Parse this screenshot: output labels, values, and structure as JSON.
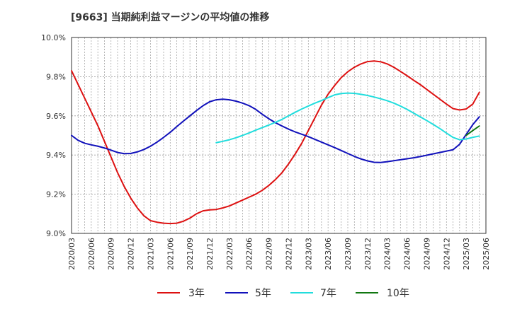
{
  "chart_data": {
    "type": "line",
    "title": "[9663]  当期純利益マージンの平均値の推移",
    "xlabel": "",
    "ylabel": "",
    "ylim": [
      9.0,
      10.0
    ],
    "yticks": [
      9.0,
      9.2,
      9.4,
      9.6,
      9.8,
      10.0
    ],
    "ytick_labels": [
      "9.0%",
      "9.2%",
      "9.4%",
      "9.6%",
      "9.8%",
      "10.0%"
    ],
    "xlim": [
      "2020-03",
      "2025-06"
    ],
    "xtick_labels": [
      "2020/03",
      "2020/06",
      "2020/09",
      "2020/12",
      "2021/03",
      "2021/06",
      "2021/09",
      "2021/12",
      "2022/03",
      "2022/06",
      "2022/09",
      "2022/12",
      "2023/03",
      "2023/06",
      "2023/09",
      "2023/12",
      "2024/03",
      "2024/06",
      "2024/09",
      "2024/12",
      "2025/03",
      "2025/06"
    ],
    "grid": true,
    "legend_position": "bottom",
    "series": [
      {
        "name": "3年",
        "color": "#dd1111",
        "points": [
          [
            "2020-03",
            9.83
          ],
          [
            "2020-04",
            9.76
          ],
          [
            "2020-05",
            9.69
          ],
          [
            "2020-06",
            9.62
          ],
          [
            "2020-07",
            9.55
          ],
          [
            "2020-08",
            9.47
          ],
          [
            "2020-09",
            9.39
          ],
          [
            "2020-10",
            9.31
          ],
          [
            "2020-11",
            9.24
          ],
          [
            "2020-12",
            9.18
          ],
          [
            "2021-01",
            9.13
          ],
          [
            "2021-02",
            9.09
          ],
          [
            "2021-03",
            9.065
          ],
          [
            "2021-04",
            9.057
          ],
          [
            "2021-05",
            9.052
          ],
          [
            "2021-06",
            9.05
          ],
          [
            "2021-07",
            9.052
          ],
          [
            "2021-08",
            9.062
          ],
          [
            "2021-09",
            9.078
          ],
          [
            "2021-10",
            9.1
          ],
          [
            "2021-11",
            9.115
          ],
          [
            "2021-12",
            9.12
          ],
          [
            "2022-01",
            9.122
          ],
          [
            "2022-02",
            9.13
          ],
          [
            "2022-03",
            9.14
          ],
          [
            "2022-04",
            9.155
          ],
          [
            "2022-05",
            9.17
          ],
          [
            "2022-06",
            9.185
          ],
          [
            "2022-07",
            9.2
          ],
          [
            "2022-08",
            9.22
          ],
          [
            "2022-09",
            9.245
          ],
          [
            "2022-10",
            9.275
          ],
          [
            "2022-11",
            9.31
          ],
          [
            "2022-12",
            9.355
          ],
          [
            "2023-01",
            9.405
          ],
          [
            "2023-02",
            9.46
          ],
          [
            "2023-03",
            9.525
          ],
          [
            "2023-04",
            9.59
          ],
          [
            "2023-05",
            9.655
          ],
          [
            "2023-06",
            9.71
          ],
          [
            "2023-07",
            9.755
          ],
          [
            "2023-08",
            9.795
          ],
          [
            "2023-09",
            9.825
          ],
          [
            "2023-10",
            9.848
          ],
          [
            "2023-11",
            9.865
          ],
          [
            "2023-12",
            9.877
          ],
          [
            "2024-01",
            9.88
          ],
          [
            "2024-02",
            9.876
          ],
          [
            "2024-03",
            9.865
          ],
          [
            "2024-04",
            9.848
          ],
          [
            "2024-05",
            9.827
          ],
          [
            "2024-06",
            9.805
          ],
          [
            "2024-07",
            9.782
          ],
          [
            "2024-08",
            9.76
          ],
          [
            "2024-09",
            9.735
          ],
          [
            "2024-10",
            9.71
          ],
          [
            "2024-11",
            9.685
          ],
          [
            "2024-12",
            9.66
          ],
          [
            "2025-01",
            9.637
          ],
          [
            "2025-02",
            9.63
          ],
          [
            "2025-03",
            9.635
          ],
          [
            "2025-04",
            9.66
          ],
          [
            "2025-05",
            9.72
          ]
        ]
      },
      {
        "name": "5年",
        "color": "#1111bb",
        "points": [
          [
            "2020-03",
            9.5
          ],
          [
            "2020-04",
            9.475
          ],
          [
            "2020-05",
            9.46
          ],
          [
            "2020-06",
            9.452
          ],
          [
            "2020-07",
            9.445
          ],
          [
            "2020-08",
            9.436
          ],
          [
            "2020-09",
            9.425
          ],
          [
            "2020-10",
            9.413
          ],
          [
            "2020-11",
            9.407
          ],
          [
            "2020-12",
            9.408
          ],
          [
            "2021-01",
            9.416
          ],
          [
            "2021-02",
            9.428
          ],
          [
            "2021-03",
            9.445
          ],
          [
            "2021-04",
            9.466
          ],
          [
            "2021-05",
            9.49
          ],
          [
            "2021-06",
            9.516
          ],
          [
            "2021-07",
            9.545
          ],
          [
            "2021-08",
            9.573
          ],
          [
            "2021-09",
            9.6
          ],
          [
            "2021-10",
            9.627
          ],
          [
            "2021-11",
            9.652
          ],
          [
            "2021-12",
            9.672
          ],
          [
            "2022-01",
            9.682
          ],
          [
            "2022-02",
            9.685
          ],
          [
            "2022-03",
            9.682
          ],
          [
            "2022-04",
            9.675
          ],
          [
            "2022-05",
            9.665
          ],
          [
            "2022-06",
            9.652
          ],
          [
            "2022-07",
            9.633
          ],
          [
            "2022-08",
            9.608
          ],
          [
            "2022-09",
            9.585
          ],
          [
            "2022-10",
            9.565
          ],
          [
            "2022-11",
            9.548
          ],
          [
            "2022-12",
            9.532
          ],
          [
            "2023-01",
            9.518
          ],
          [
            "2023-02",
            9.506
          ],
          [
            "2023-03",
            9.494
          ],
          [
            "2023-04",
            9.48
          ],
          [
            "2023-05",
            9.466
          ],
          [
            "2023-06",
            9.452
          ],
          [
            "2023-07",
            9.438
          ],
          [
            "2023-08",
            9.423
          ],
          [
            "2023-09",
            9.408
          ],
          [
            "2023-10",
            9.393
          ],
          [
            "2023-11",
            9.38
          ],
          [
            "2023-12",
            9.37
          ],
          [
            "2024-01",
            9.363
          ],
          [
            "2024-02",
            9.362
          ],
          [
            "2024-03",
            9.366
          ],
          [
            "2024-04",
            9.371
          ],
          [
            "2024-05",
            9.376
          ],
          [
            "2024-06",
            9.381
          ],
          [
            "2024-07",
            9.386
          ],
          [
            "2024-08",
            9.392
          ],
          [
            "2024-09",
            9.399
          ],
          [
            "2024-10",
            9.406
          ],
          [
            "2024-11",
            9.413
          ],
          [
            "2024-12",
            9.42
          ],
          [
            "2025-01",
            9.427
          ],
          [
            "2025-02",
            9.455
          ],
          [
            "2025-03",
            9.505
          ],
          [
            "2025-04",
            9.555
          ],
          [
            "2025-05",
            9.595
          ]
        ]
      },
      {
        "name": "7年",
        "color": "#22dddd",
        "points": [
          [
            "2022-01",
            9.463
          ],
          [
            "2022-02",
            9.47
          ],
          [
            "2022-03",
            9.478
          ],
          [
            "2022-04",
            9.488
          ],
          [
            "2022-05",
            9.5
          ],
          [
            "2022-06",
            9.513
          ],
          [
            "2022-07",
            9.527
          ],
          [
            "2022-08",
            9.54
          ],
          [
            "2022-09",
            9.553
          ],
          [
            "2022-10",
            9.567
          ],
          [
            "2022-11",
            9.582
          ],
          [
            "2022-12",
            9.6
          ],
          [
            "2023-01",
            9.618
          ],
          [
            "2023-02",
            9.635
          ],
          [
            "2023-03",
            9.65
          ],
          [
            "2023-04",
            9.665
          ],
          [
            "2023-05",
            9.678
          ],
          [
            "2023-06",
            9.693
          ],
          [
            "2023-07",
            9.707
          ],
          [
            "2023-08",
            9.714
          ],
          [
            "2023-09",
            9.716
          ],
          [
            "2023-10",
            9.715
          ],
          [
            "2023-11",
            9.71
          ],
          [
            "2023-12",
            9.704
          ],
          [
            "2024-01",
            9.696
          ],
          [
            "2024-02",
            9.687
          ],
          [
            "2024-03",
            9.677
          ],
          [
            "2024-04",
            9.665
          ],
          [
            "2024-05",
            9.65
          ],
          [
            "2024-06",
            9.633
          ],
          [
            "2024-07",
            9.614
          ],
          [
            "2024-08",
            9.595
          ],
          [
            "2024-09",
            9.576
          ],
          [
            "2024-10",
            9.556
          ],
          [
            "2024-11",
            9.535
          ],
          [
            "2024-12",
            9.512
          ],
          [
            "2025-01",
            9.49
          ],
          [
            "2025-02",
            9.478
          ],
          [
            "2025-03",
            9.482
          ],
          [
            "2025-04",
            9.49
          ],
          [
            "2025-05",
            9.497
          ]
        ]
      },
      {
        "name": "10年",
        "color": "#117711",
        "points": [
          [
            "2025-03",
            9.5
          ],
          [
            "2025-04",
            9.525
          ],
          [
            "2025-05",
            9.548
          ]
        ]
      }
    ]
  }
}
